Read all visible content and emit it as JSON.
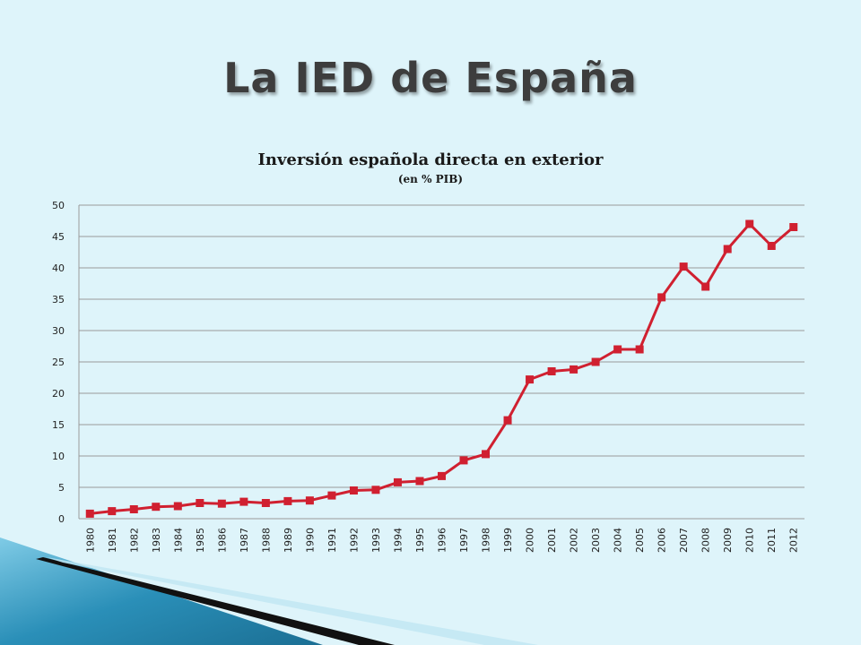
{
  "slide": {
    "title": "La IED de España"
  },
  "colors": {
    "background": "#def4fa",
    "series": "#d02030",
    "grid": "#9a9a9a",
    "decoration_blue": "#2a8fb8",
    "decoration_black": "#111111"
  },
  "chart_data": {
    "type": "line",
    "title": "Inversión española directa en exterior",
    "subtitle": "(en % PIB)",
    "xlabel": "",
    "ylabel": "",
    "ylim": [
      0,
      50
    ],
    "yticks": [
      0,
      5,
      10,
      15,
      20,
      25,
      30,
      35,
      40,
      45,
      50
    ],
    "grid": true,
    "legend": "none",
    "categories": [
      "1980",
      "1981",
      "1982",
      "1983",
      "1984",
      "1985",
      "1986",
      "1987",
      "1988",
      "1989",
      "1990",
      "1991",
      "1992",
      "1993",
      "1994",
      "1995",
      "1996",
      "1997",
      "1998",
      "1999",
      "2000",
      "2001",
      "2002",
      "2003",
      "2004",
      "2005",
      "2006",
      "2007",
      "2008",
      "2009",
      "2010",
      "2011",
      "2012"
    ],
    "series": [
      {
        "values": [
          0.8,
          1.2,
          1.5,
          1.9,
          2.0,
          2.5,
          2.4,
          2.7,
          2.5,
          2.8,
          2.9,
          3.7,
          4.5,
          4.6,
          5.8,
          6.0,
          6.8,
          9.3,
          10.3,
          15.7,
          22.2,
          23.5,
          23.8,
          25.0,
          27.0,
          27.0,
          35.3,
          40.2,
          37.0,
          43.0,
          47.0,
          43.5,
          46.5
        ],
        "marker": "square"
      }
    ]
  }
}
